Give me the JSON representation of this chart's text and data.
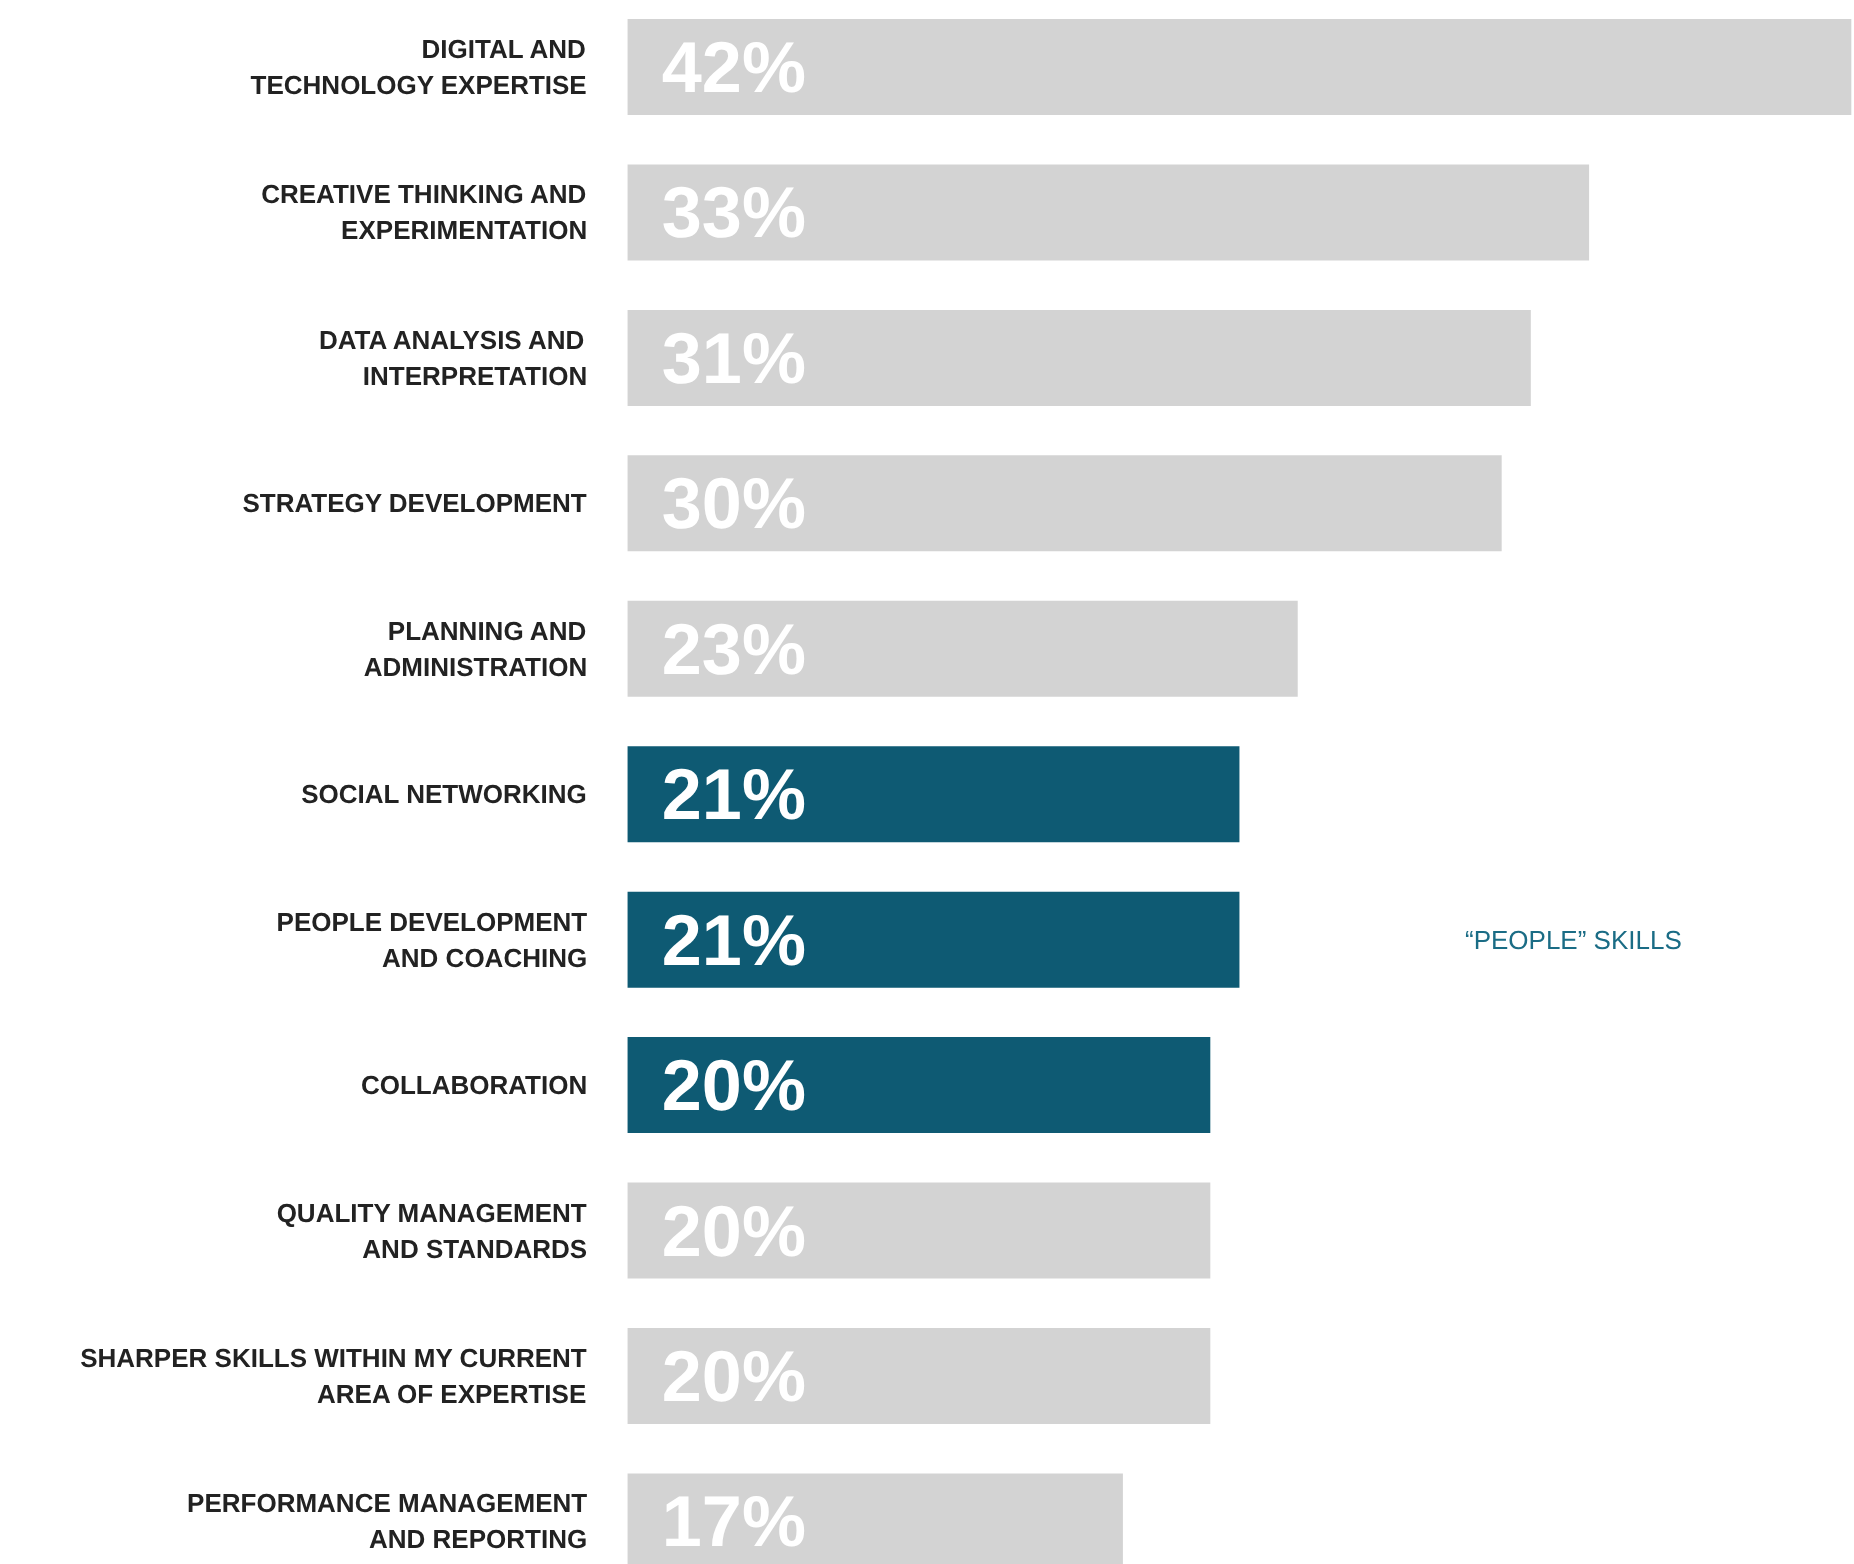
{
  "chart_data": {
    "type": "bar",
    "orientation": "horizontal",
    "categories": [
      "DIGITAL AND\nTECHNOLOGY EXPERTISE",
      "CREATIVE THINKING AND\nEXPERIMENTATION",
      "DATA ANALYSIS AND\nINTERPRETATION",
      "STRATEGY DEVELOPMENT",
      "PLANNING AND\nADMINISTRATION",
      "SOCIAL NETWORKING",
      "PEOPLE DEVELOPMENT\nAND COACHING",
      "COLLABORATION",
      "QUALITY MANAGEMENT\nAND STANDARDS",
      "SHARPER SKILLS WITHIN MY CURRENT\nAREA OF EXPERTISE",
      "PERFORMANCE MANAGEMENT\nAND REPORTING"
    ],
    "values": [
      42,
      33,
      31,
      30,
      23,
      21,
      21,
      20,
      20,
      20,
      17
    ],
    "value_labels": [
      "42%",
      "33%",
      "31%",
      "30%",
      "23%",
      "21%",
      "21%",
      "20%",
      "20%",
      "20%",
      "17%"
    ],
    "colors": [
      "#d3d3d3",
      "#d3d3d3",
      "#d3d3d3",
      "#d3d3d3",
      "#d3d3d3",
      "#0e5a73",
      "#0e5a73",
      "#0e5a73",
      "#d3d3d3",
      "#d3d3d3",
      "#d3d3d3"
    ],
    "annotations": [
      "“PEOPLE” SKILLS"
    ],
    "grid": false
  }
}
